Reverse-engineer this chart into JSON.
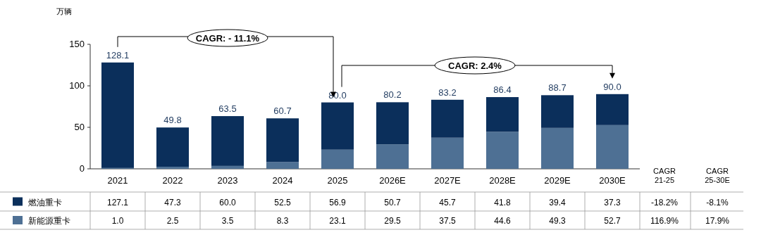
{
  "chart_data": {
    "type": "bar",
    "stacked": true,
    "ylabel": "万辆",
    "categories": [
      "2021",
      "2022",
      "2023",
      "2024",
      "2025",
      "2026E",
      "2027E",
      "2028E",
      "2029E",
      "2030E"
    ],
    "series": [
      {
        "name": "新能源重卡",
        "color": "#4e7094",
        "values": [
          1.0,
          2.5,
          3.5,
          8.3,
          23.1,
          29.5,
          37.5,
          44.6,
          49.3,
          52.7
        ],
        "value_labels": [
          "1.0",
          "2.5",
          "3.5",
          "8.3",
          "23.1",
          "29.5",
          "37.5",
          "44.6",
          "49.3",
          "52.7"
        ]
      },
      {
        "name": "燃油重卡",
        "color": "#0b2f5b",
        "values": [
          127.1,
          47.3,
          60.0,
          52.5,
          56.9,
          50.7,
          45.7,
          41.8,
          39.4,
          37.3
        ],
        "value_labels": [
          "127.1",
          "47.3",
          "60.0",
          "52.5",
          "56.9",
          "50.7",
          "45.7",
          "41.8",
          "39.4",
          "37.3"
        ]
      }
    ],
    "totals": [
      "128.1",
      "49.8",
      "63.5",
      "60.7",
      "80.0",
      "80.2",
      "83.2",
      "86.4",
      "88.7",
      "90.0"
    ],
    "legend": "bottom left",
    "ylim": [
      0,
      150
    ],
    "yticks": [
      0,
      50,
      100,
      150
    ],
    "annotations": [
      "CAGR: - 11.1%",
      "CAGR: 2.4%",
      "CAGR 21-25",
      "CAGR 25-30E",
      "-18.2%",
      "-8.1%",
      "116.9%",
      "17.9%"
    ]
  }
}
